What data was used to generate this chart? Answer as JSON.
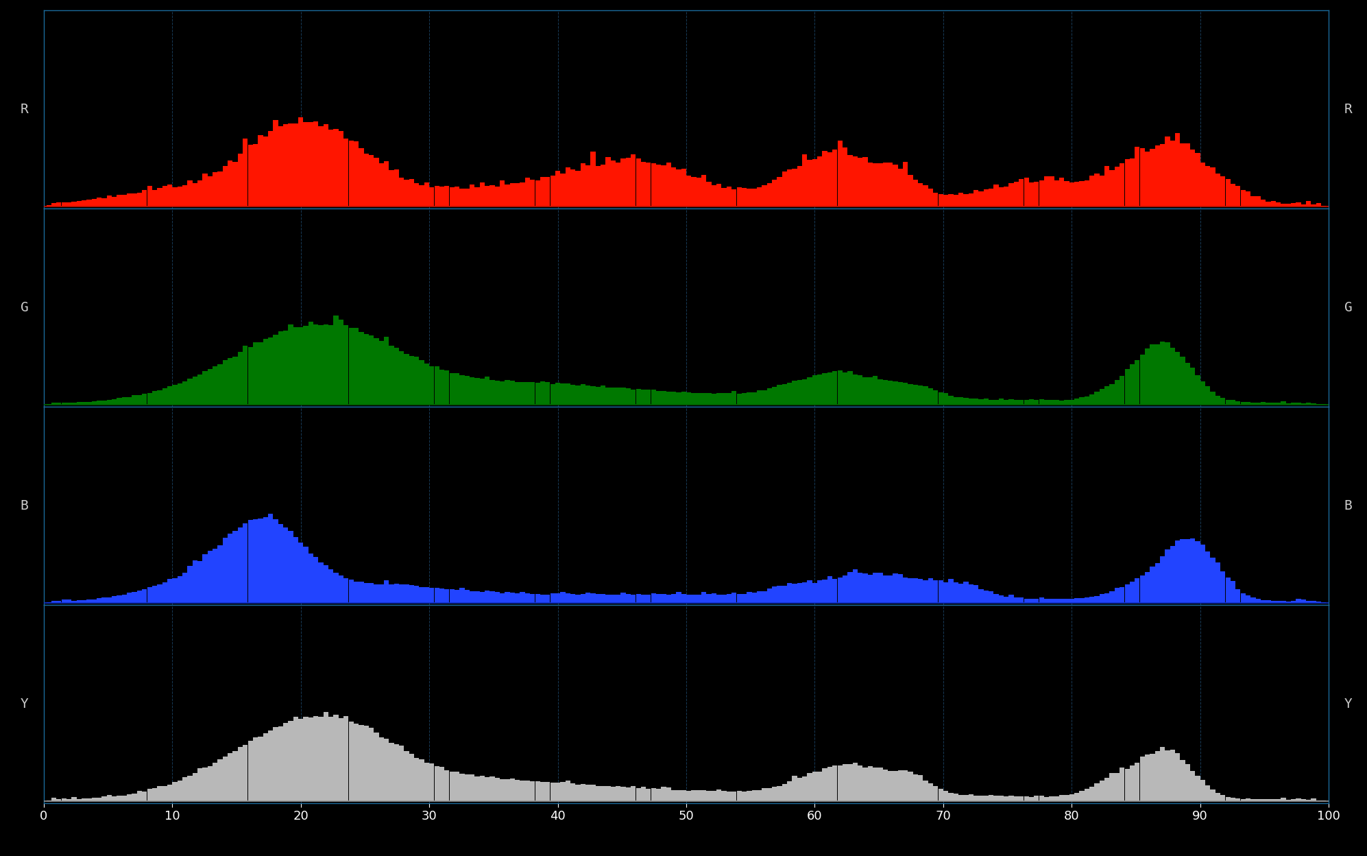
{
  "background_color": "#000000",
  "panel_bg": "#000000",
  "grid_color": "#1a4060",
  "border_color": "#1a6a9a",
  "label_color": "#cccccc",
  "xlim": [
    0,
    100
  ],
  "xticks": [
    0,
    10,
    20,
    30,
    40,
    50,
    60,
    70,
    80,
    90,
    100
  ],
  "xlabel_fontsize": 13,
  "ylabel_labels": [
    "R",
    "G",
    "B",
    "Y"
  ],
  "channel_colors": [
    "#ff1500",
    "#007800",
    "#2244ff",
    "#b8b8b8"
  ],
  "baseline_colors": [
    "#cc1200",
    "#006600",
    "#1133cc",
    "#999999"
  ],
  "num_bins": 256,
  "seed": 42
}
